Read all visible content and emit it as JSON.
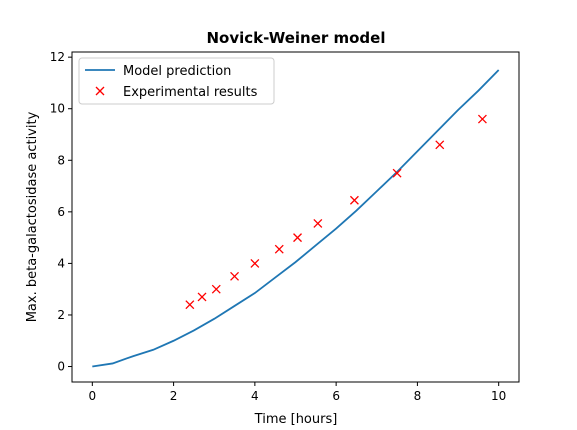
{
  "chart_data": {
    "type": "line",
    "title": "Novick-Weiner model",
    "xlabel": "Time [hours]",
    "ylabel": "Max. beta-galactosidase activity",
    "xlim": [
      -0.5,
      10.5
    ],
    "ylim": [
      -0.6,
      12.2
    ],
    "xticks": [
      0,
      2,
      4,
      6,
      8,
      10
    ],
    "yticks": [
      0,
      2,
      4,
      6,
      8,
      10,
      12
    ],
    "grid": false,
    "legend_position": "upper-left",
    "colors": {
      "model": "#1f77b4",
      "experimental": "#ff0000"
    },
    "series": [
      {
        "name": "Model prediction",
        "kind": "line",
        "x": [
          0,
          0.5,
          1,
          1.5,
          2,
          2.5,
          3,
          3.5,
          4,
          4.5,
          5,
          5.5,
          6,
          6.5,
          7,
          7.5,
          8,
          8.5,
          9,
          9.5,
          10
        ],
        "y": [
          0,
          0.12,
          0.4,
          0.65,
          1.0,
          1.4,
          1.85,
          2.35,
          2.85,
          3.45,
          4.05,
          4.7,
          5.35,
          6.05,
          6.8,
          7.55,
          8.35,
          9.15,
          9.95,
          10.7,
          11.5
        ]
      },
      {
        "name": "Experimental results",
        "kind": "scatter",
        "marker": "x",
        "x": [
          2.4,
          2.7,
          3.05,
          3.5,
          4.0,
          4.6,
          5.05,
          5.55,
          6.45,
          7.5,
          8.55,
          9.6
        ],
        "y": [
          2.4,
          2.7,
          3.0,
          3.5,
          4.0,
          4.55,
          5.0,
          5.55,
          6.45,
          7.5,
          8.6,
          9.6
        ]
      }
    ]
  }
}
